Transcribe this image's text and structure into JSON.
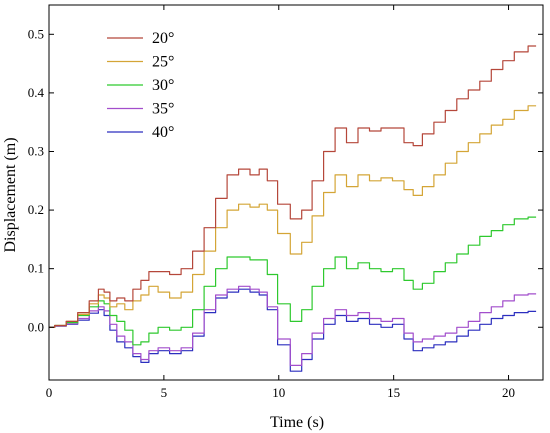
{
  "chart_data": {
    "type": "line",
    "title": "",
    "xlabel": "Time (s)",
    "ylabel": "Displacement (m)",
    "xlim": [
      0,
      21.5
    ],
    "ylim": [
      -0.09,
      0.55
    ],
    "xticks": [
      0,
      5,
      10,
      15,
      20
    ],
    "yticks": [
      0.0,
      0.1,
      0.2,
      0.3,
      0.4,
      0.5
    ],
    "xtick_labels": [
      "0",
      "5",
      "10",
      "15",
      "20"
    ],
    "ytick_labels": [
      "0.0",
      "0.1",
      "0.2",
      "0.3",
      "0.4",
      "0.5"
    ],
    "grid": false,
    "legend_position": "top-left",
    "x": [
      0,
      0.5,
      1,
      1.5,
      2,
      2.3,
      2.5,
      2.8,
      3.1,
      3.5,
      3.8,
      4.2,
      4.5,
      5,
      5.5,
      6,
      6.5,
      7,
      7.5,
      8,
      8.5,
      9,
      9.3,
      9.7,
      10.2,
      10.8,
      11.2,
      11.7,
      12.2,
      12.7,
      13.2,
      13.7,
      14.2,
      14.7,
      15.2,
      15.7,
      16,
      16.5,
      17,
      17.5,
      18,
      18.5,
      19,
      19.5,
      20,
      20.5,
      21.2
    ],
    "series": [
      {
        "name": "20°",
        "color": "#b5473a",
        "values": [
          0,
          0.003,
          0.01,
          0.025,
          0.045,
          0.065,
          0.06,
          0.045,
          0.05,
          0.045,
          0.065,
          0.08,
          0.095,
          0.095,
          0.09,
          0.1,
          0.13,
          0.17,
          0.22,
          0.26,
          0.27,
          0.26,
          0.27,
          0.25,
          0.21,
          0.185,
          0.2,
          0.25,
          0.3,
          0.34,
          0.315,
          0.34,
          0.335,
          0.34,
          0.34,
          0.315,
          0.31,
          0.33,
          0.35,
          0.37,
          0.39,
          0.405,
          0.42,
          0.44,
          0.455,
          0.47,
          0.48
        ]
      },
      {
        "name": "25°",
        "color": "#d4a536",
        "values": [
          0,
          0.003,
          0.01,
          0.022,
          0.04,
          0.055,
          0.05,
          0.035,
          0.04,
          0.03,
          0.045,
          0.055,
          0.07,
          0.06,
          0.05,
          0.06,
          0.09,
          0.13,
          0.17,
          0.2,
          0.21,
          0.205,
          0.21,
          0.2,
          0.16,
          0.125,
          0.145,
          0.19,
          0.23,
          0.26,
          0.24,
          0.26,
          0.25,
          0.255,
          0.25,
          0.235,
          0.225,
          0.24,
          0.26,
          0.28,
          0.3,
          0.315,
          0.33,
          0.345,
          0.355,
          0.37,
          0.378
        ]
      },
      {
        "name": "30°",
        "color": "#2ec92e",
        "values": [
          0,
          0.003,
          0.008,
          0.02,
          0.035,
          0.045,
          0.04,
          0.02,
          0.01,
          -0.005,
          -0.03,
          -0.025,
          -0.01,
          0.0,
          -0.005,
          0.0,
          0.03,
          0.07,
          0.1,
          0.12,
          0.12,
          0.115,
          0.115,
          0.09,
          0.04,
          0.01,
          0.03,
          0.07,
          0.1,
          0.12,
          0.1,
          0.11,
          0.1,
          0.095,
          0.1,
          0.08,
          0.065,
          0.075,
          0.095,
          0.11,
          0.125,
          0.14,
          0.155,
          0.165,
          0.175,
          0.185,
          0.188
        ]
      },
      {
        "name": "35°",
        "color": "#a24ecc",
        "values": [
          0,
          0.002,
          0.006,
          0.015,
          0.028,
          0.035,
          0.028,
          0.005,
          -0.015,
          -0.025,
          -0.045,
          -0.055,
          -0.04,
          -0.035,
          -0.04,
          -0.035,
          -0.01,
          0.03,
          0.055,
          0.065,
          0.07,
          0.065,
          0.06,
          0.035,
          -0.02,
          -0.065,
          -0.045,
          -0.01,
          0.015,
          0.03,
          0.02,
          0.025,
          0.015,
          0.01,
          0.015,
          -0.01,
          -0.025,
          -0.02,
          -0.015,
          -0.01,
          0.0,
          0.01,
          0.025,
          0.035,
          0.045,
          0.055,
          0.057
        ]
      },
      {
        "name": "40°",
        "color": "#2c2fbf",
        "values": [
          0,
          0.002,
          0.005,
          0.012,
          0.024,
          0.03,
          0.02,
          -0.005,
          -0.025,
          -0.035,
          -0.05,
          -0.06,
          -0.045,
          -0.04,
          -0.045,
          -0.04,
          -0.015,
          0.025,
          0.05,
          0.06,
          0.065,
          0.06,
          0.055,
          0.03,
          -0.03,
          -0.075,
          -0.055,
          -0.02,
          0.005,
          0.02,
          0.01,
          0.015,
          0.005,
          0.0,
          0.005,
          -0.02,
          -0.04,
          -0.035,
          -0.03,
          -0.025,
          -0.015,
          -0.005,
          0.005,
          0.015,
          0.02,
          0.025,
          0.027
        ]
      }
    ]
  }
}
